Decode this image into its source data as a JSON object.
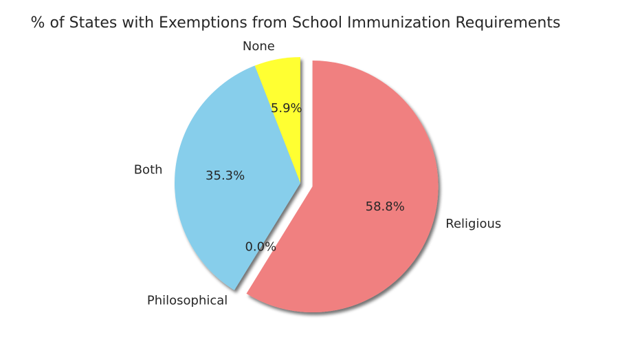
{
  "chart_data": {
    "type": "pie",
    "title": "% of States with Exemptions from School Immunization Requirements",
    "slices": [
      {
        "label": "Religious",
        "value": 58.8,
        "pct_label": "58.8%",
        "color": "#f08080",
        "explode": true
      },
      {
        "label": "Philosophical",
        "value": 0.0,
        "pct_label": "0.0%",
        "color": "#ff9900",
        "explode": false
      },
      {
        "label": "Both",
        "value": 35.3,
        "pct_label": "35.3%",
        "color": "#87ceeb",
        "explode": false
      },
      {
        "label": "None",
        "value": 5.9,
        "pct_label": "5.9%",
        "color": "#ffff33",
        "explode": false
      }
    ],
    "start_angle_deg": -90,
    "counterclockwise": false,
    "shadow": true,
    "legend": "none"
  }
}
